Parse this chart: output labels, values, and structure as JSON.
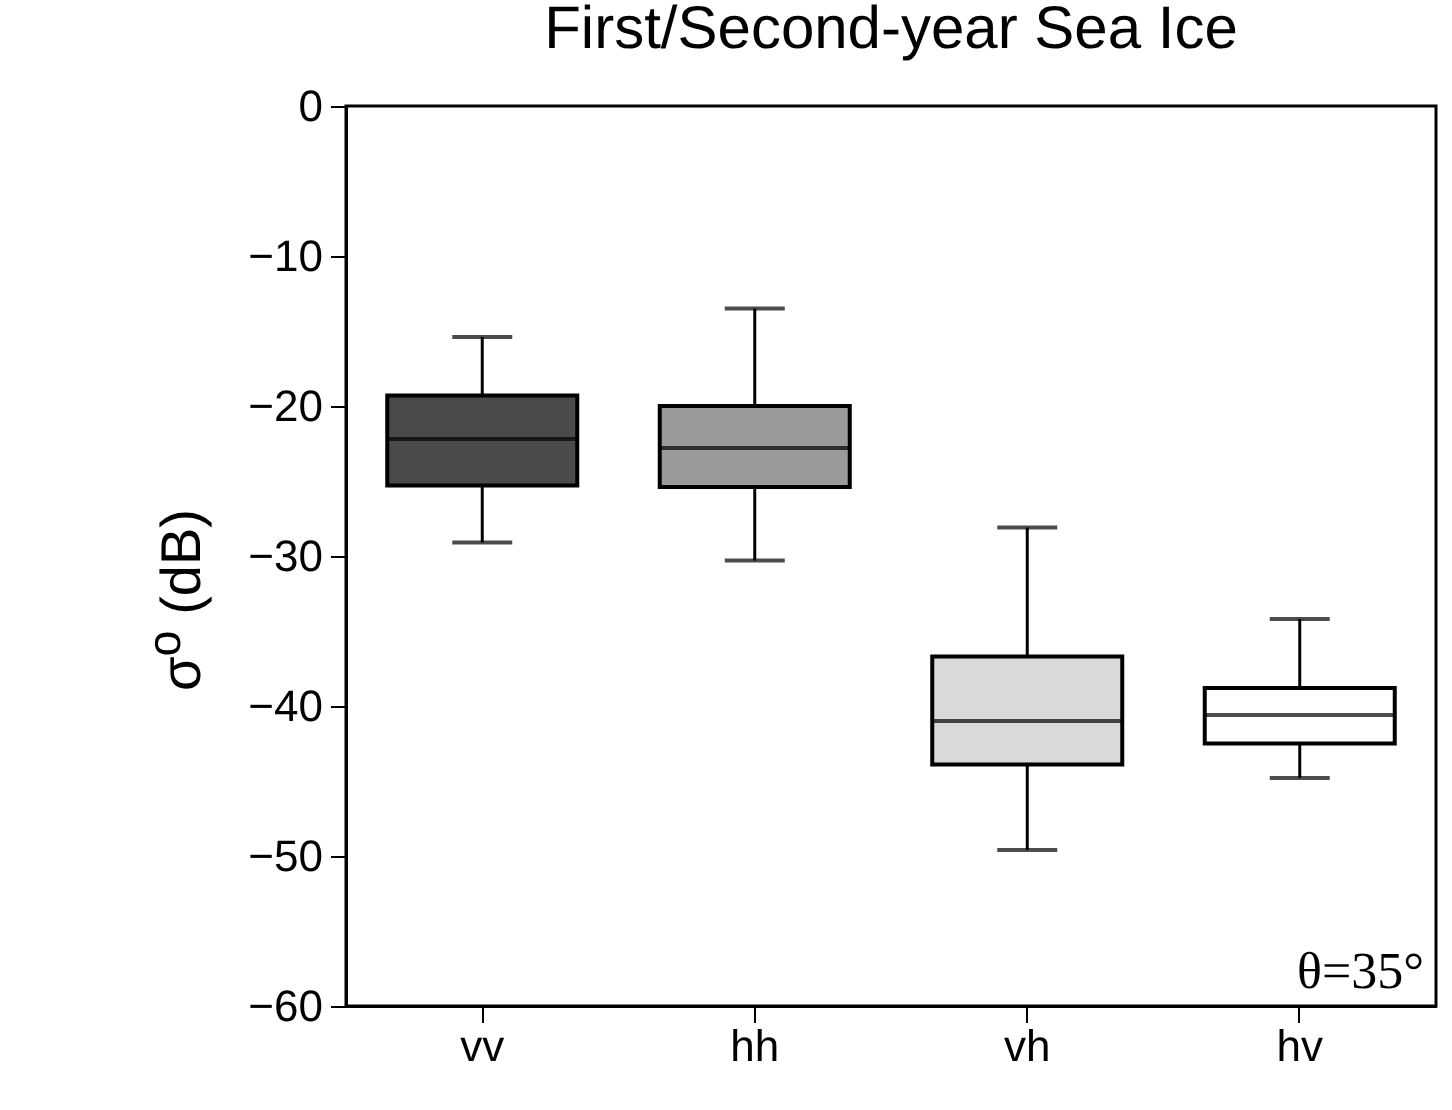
{
  "chart_data": {
    "type": "box",
    "title": "First/Second-year Sea Ice",
    "ylabel": "σ$^{o}$ (dB)",
    "categories": [
      "vv",
      "hh",
      "vh",
      "hv"
    ],
    "boxes": [
      {
        "low": -29.1,
        "q1": -25.3,
        "median": -22.2,
        "q3": -19.3,
        "high": -15.4
      },
      {
        "low": -30.3,
        "q1": -25.4,
        "median": -22.8,
        "q3": -20.0,
        "high": -13.5
      },
      {
        "low": -49.6,
        "q1": -43.9,
        "median": -41.0,
        "q3": -36.7,
        "high": -28.1
      },
      {
        "low": -44.8,
        "q1": -42.5,
        "median": -40.6,
        "q3": -38.8,
        "high": -34.2
      }
    ],
    "colors": [
      "#4a4a4a",
      "#9a9a9a",
      "#d9d9d9",
      "#ffffff"
    ],
    "ylim": [
      -60,
      0
    ],
    "yticks": [
      -60,
      -50,
      -40,
      -30,
      -20,
      -10,
      0
    ],
    "annotations": [
      "θ=35°"
    ]
  }
}
